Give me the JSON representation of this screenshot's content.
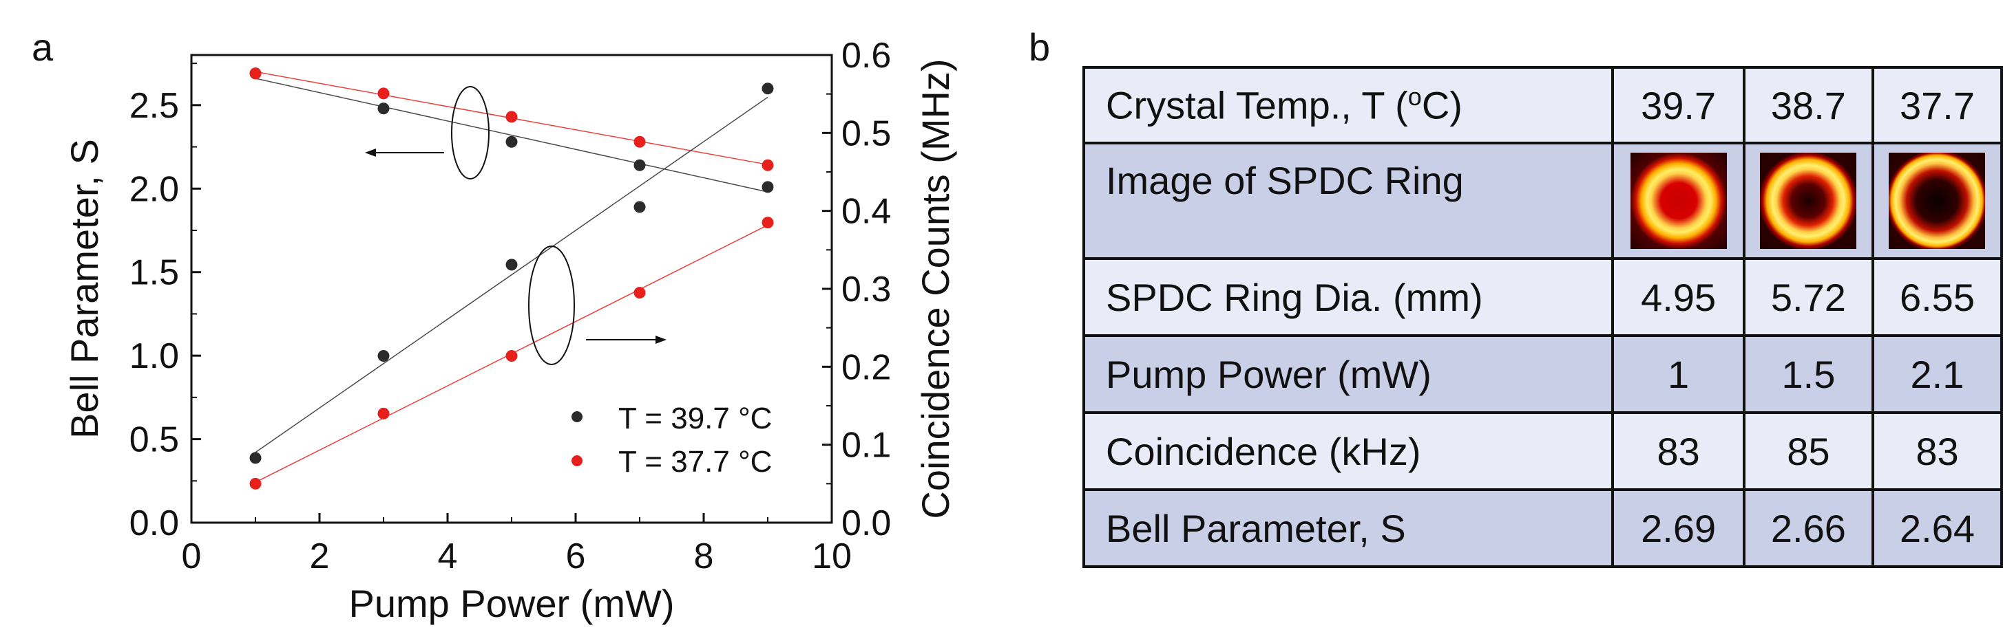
{
  "panel_labels": {
    "a": "a",
    "b": "b"
  },
  "chart_data": {
    "type": "scatter",
    "xlabel": "Pump Power (mW)",
    "ylabel_left": "Bell Parameter, S",
    "ylabel_right": "Coincidence Counts (MHz)",
    "xlim": [
      0,
      10
    ],
    "ylim_left": [
      0,
      2.8
    ],
    "ylim_right": [
      0,
      0.6
    ],
    "x_ticks": [
      "0",
      "2",
      "4",
      "6",
      "8",
      "10"
    ],
    "y_left_ticks": [
      "0.0",
      "0.5",
      "1.0",
      "1.5",
      "2.0",
      "2.5"
    ],
    "y_right_ticks": [
      "0.0",
      "0.1",
      "0.2",
      "0.3",
      "0.4",
      "0.5",
      "0.6"
    ],
    "legend_position": "bottom-right",
    "series": [
      {
        "name": "T = 39.7 °C",
        "axis": "left",
        "color": "#2b2b2b",
        "x": [
          1,
          3,
          5,
          7,
          9
        ],
        "values": [
          2.69,
          2.48,
          2.28,
          2.14,
          2.01
        ]
      },
      {
        "name": "T = 37.7 °C",
        "axis": "left",
        "color": "#e8201c",
        "x": [
          1,
          3,
          5,
          7,
          9
        ],
        "values": [
          2.69,
          2.57,
          2.43,
          2.28,
          2.14
        ]
      },
      {
        "name": "T = 39.7 °C",
        "axis": "right",
        "color": "#2b2b2b",
        "x": [
          1,
          3,
          5,
          7,
          9
        ],
        "values": [
          0.083,
          0.214,
          0.331,
          0.405,
          0.557
        ]
      },
      {
        "name": "T = 37.7 °C",
        "axis": "right",
        "color": "#e8201c",
        "x": [
          1,
          3,
          5,
          7,
          9
        ],
        "values": [
          0.05,
          0.14,
          0.214,
          0.295,
          0.385
        ]
      }
    ],
    "annotations": [
      {
        "type": "arrow",
        "direction": "left",
        "points_to_axis": "left"
      },
      {
        "type": "arrow",
        "direction": "right",
        "points_to_axis": "right"
      }
    ]
  },
  "table": {
    "rows": [
      {
        "label": "Crystal Temp., T (°C)",
        "label_main": "Crystal Temp., T (",
        "label_sup": "o",
        "label_tail": "C)",
        "values": [
          "39.7",
          "38.7",
          "37.7"
        ]
      },
      {
        "label": "Image of SPDC Ring",
        "images": [
          "spdc-ring-39.7",
          "spdc-ring-38.7",
          "spdc-ring-37.7"
        ]
      },
      {
        "label": "SPDC Ring Dia. (mm)",
        "values": [
          "4.95",
          "5.72",
          "6.55"
        ]
      },
      {
        "label": "Pump Power (mW)",
        "values": [
          "1",
          "1.5",
          "2.1"
        ]
      },
      {
        "label": "Coincidence (kHz)",
        "values": [
          "83",
          "85",
          "83"
        ]
      },
      {
        "label": "Bell Parameter, S",
        "values": [
          "2.69",
          "2.66",
          "2.64"
        ]
      }
    ]
  },
  "colors": {
    "black_series": "#2b2b2b",
    "red_series": "#e8201c",
    "row_light": "#e9ecf6",
    "row_dark": "#c9cfe7"
  }
}
